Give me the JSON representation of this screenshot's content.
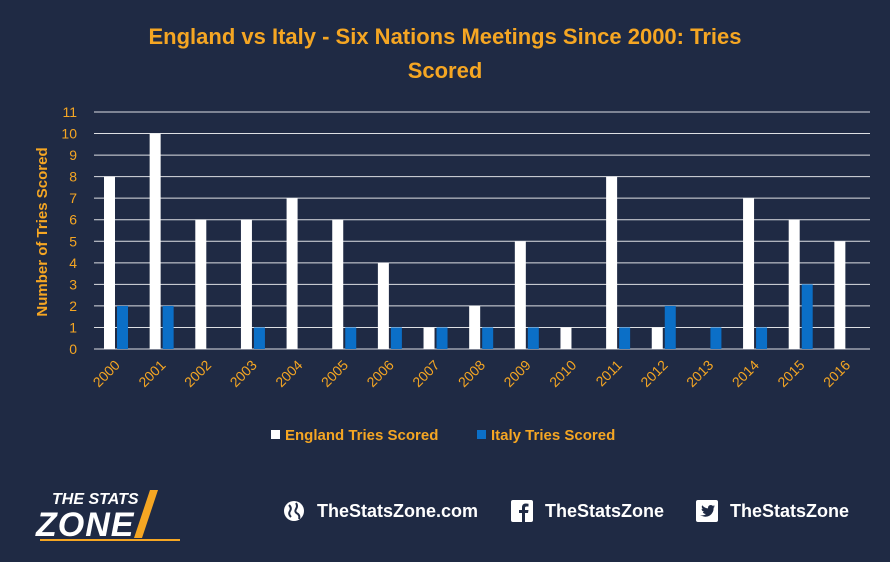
{
  "colors": {
    "background": "#1f2a44",
    "title": "#f5a623",
    "axis_text": "#f5a623",
    "gridline": "#ffffff",
    "england": "#ffffff",
    "italy": "#0b6fc7"
  },
  "chart_data": {
    "type": "bar",
    "title": "England vs Italy - Six Nations Meetings Since 2000: Tries Scored",
    "title_lines": [
      "England vs Italy - Six Nations Meetings Since 2000: Tries",
      "Scored"
    ],
    "xlabel": "",
    "ylabel": "Number of Tries Scored",
    "ylim": [
      0,
      11
    ],
    "yticks": [
      0,
      1,
      2,
      3,
      4,
      5,
      6,
      7,
      8,
      9,
      10,
      11
    ],
    "grid": true,
    "legend_position": "bottom",
    "categories": [
      "2000",
      "2001",
      "2002",
      "2003",
      "2004",
      "2005",
      "2006",
      "2007",
      "2008",
      "2009",
      "2010",
      "2011",
      "2012",
      "2013",
      "2014",
      "2015",
      "2016"
    ],
    "series": [
      {
        "name": "England Tries Scored",
        "values": [
          8,
          10,
          6,
          6,
          7,
          6,
          4,
          1,
          2,
          5,
          1,
          8,
          1,
          0,
          7,
          6,
          5
        ]
      },
      {
        "name": "Italy Tries Scored",
        "values": [
          2,
          2,
          0,
          1,
          0,
          1,
          1,
          1,
          1,
          1,
          0,
          1,
          2,
          1,
          1,
          3,
          0
        ]
      }
    ]
  },
  "footer": {
    "logo_top": "THE STATS",
    "logo_bottom": "ZONE",
    "website": "TheStatsZone.com",
    "facebook": "TheStatsZone",
    "twitter": "TheStatsZone"
  }
}
